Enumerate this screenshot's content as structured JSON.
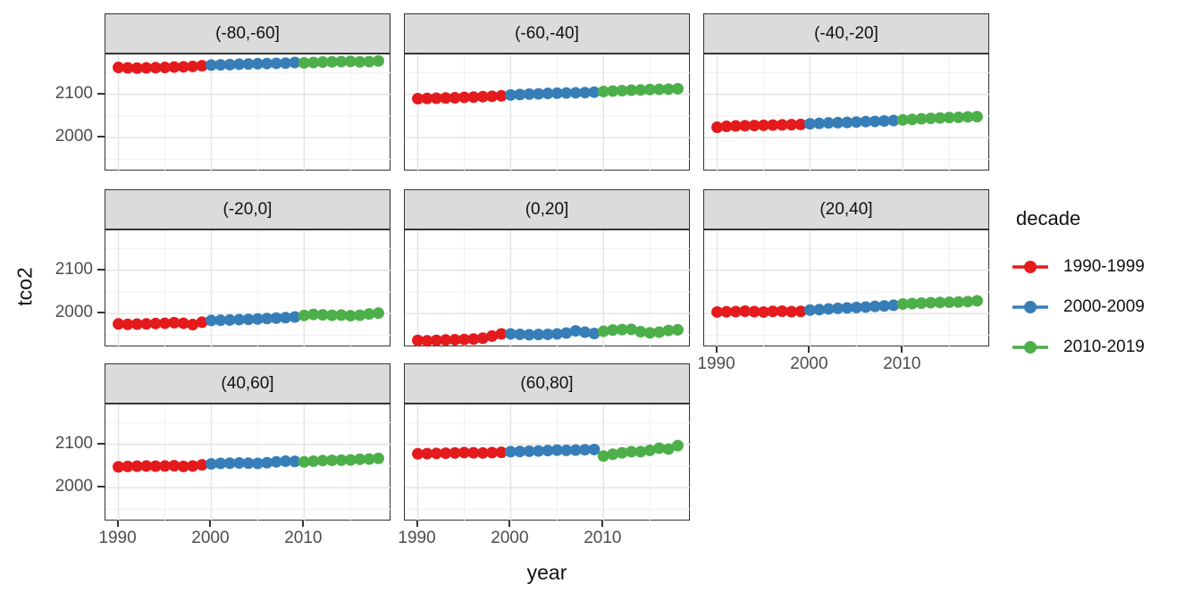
{
  "chart_data": {
    "type": "scatter",
    "title": "",
    "xlabel": "year",
    "ylabel": "tco2",
    "grid": true,
    "legend_position": "right",
    "legend_title": "decade",
    "x_ticks": [
      1990,
      2000,
      2010
    ],
    "x_minor_gridlines": [
      1995,
      2005,
      2015
    ],
    "y_ticks": [
      2100,
      2000
    ],
    "y_minor_gridlines": [
      1950,
      2050,
      2150
    ],
    "x_range": [
      1988.6,
      2019.4
    ],
    "y_range": [
      1922,
      2192
    ],
    "series_groups": [
      {
        "label": "1990-1999",
        "color": "#E41A1C",
        "from": 1990,
        "to": 1999
      },
      {
        "label": "2000-2009",
        "color": "#377EB8",
        "from": 2000,
        "to": 2009
      },
      {
        "label": "2010-2019",
        "color": "#4DAF4A",
        "from": 2010,
        "to": 2019
      }
    ],
    "x": [
      1990,
      1991,
      1992,
      1993,
      1994,
      1995,
      1996,
      1997,
      1998,
      1999,
      2000,
      2001,
      2002,
      2003,
      2004,
      2005,
      2006,
      2007,
      2008,
      2009,
      2010,
      2011,
      2012,
      2013,
      2014,
      2015,
      2016,
      2017,
      2018
    ],
    "facets": [
      {
        "label": "(-80,-60]",
        "row": 0,
        "col": 0,
        "axis_x": false,
        "axis_y": true,
        "values": [
          2162,
          2161,
          2160.5,
          2161,
          2161.5,
          2162,
          2163,
          2163.5,
          2164.5,
          2166,
          2167.5,
          2168,
          2168.5,
          2169.5,
          2170,
          2170.5,
          2171,
          2171.5,
          2172,
          2173.5,
          2172.5,
          2173.5,
          2174.5,
          2175,
          2175.5,
          2176,
          2175,
          2175.5,
          2177
        ]
      },
      {
        "label": "(-60,-40]",
        "row": 0,
        "col": 1,
        "axis_x": false,
        "axis_y": false,
        "values": [
          2090,
          2090.5,
          2091,
          2091.5,
          2092,
          2093,
          2093.5,
          2094.5,
          2095.5,
          2096.5,
          2098.5,
          2099.5,
          2100.5,
          2101,
          2102,
          2102.5,
          2103,
          2103.5,
          2104,
          2105,
          2106.5,
          2107.5,
          2108.5,
          2109.5,
          2110,
          2111,
          2111.5,
          2112,
          2113
        ]
      },
      {
        "label": "(-40,-20]",
        "row": 0,
        "col": 2,
        "axis_x": false,
        "axis_y": false,
        "values": [
          2024,
          2026,
          2027,
          2027.5,
          2028,
          2028.5,
          2029,
          2029.5,
          2030,
          2030.5,
          2032,
          2033,
          2034,
          2034.5,
          2035,
          2036,
          2037,
          2037.5,
          2038.5,
          2039.5,
          2041,
          2042,
          2043.5,
          2044.5,
          2045.5,
          2046.5,
          2047,
          2048,
          2048.5
        ]
      },
      {
        "label": "(-20,0]",
        "row": 1,
        "col": 0,
        "axis_x": false,
        "axis_y": true,
        "values": [
          1976,
          1975,
          1975.5,
          1976,
          1977,
          1977.5,
          1979,
          1977.5,
          1974.5,
          1980,
          1984,
          1984.5,
          1985,
          1986,
          1986.5,
          1987.5,
          1988.5,
          1989.5,
          1990.5,
          1992,
          1995.5,
          1998,
          1997,
          1996,
          1996.5,
          1995,
          1996,
          1999,
          2001
        ]
      },
      {
        "label": "(0,20]",
        "row": 1,
        "col": 1,
        "axis_x": false,
        "axis_y": false,
        "values": [
          1938,
          1937,
          1938,
          1939,
          1939.5,
          1940,
          1941,
          1943,
          1948,
          1953,
          1953,
          1952,
          1951,
          1951.5,
          1952,
          1953,
          1955,
          1960,
          1957,
          1954,
          1959,
          1962,
          1963,
          1963.5,
          1958,
          1955.5,
          1957,
          1961,
          1962.5
        ]
      },
      {
        "label": "(20,40]",
        "row": 1,
        "col": 2,
        "axis_x": true,
        "axis_y": false,
        "values": [
          2003.5,
          2004,
          2004.5,
          2005.5,
          2004.5,
          2003.5,
          2005,
          2005.5,
          2004.5,
          2005,
          2008,
          2009,
          2010.5,
          2012,
          2013,
          2014,
          2015,
          2016.5,
          2017.5,
          2019,
          2022,
          2023,
          2024,
          2025,
          2025.5,
          2026,
          2026.5,
          2027.5,
          2029.5
        ]
      },
      {
        "label": "(40,60]",
        "row": 2,
        "col": 0,
        "axis_x": true,
        "axis_y": true,
        "values": [
          2048,
          2049,
          2049.5,
          2050,
          2049.5,
          2050,
          2050.5,
          2049,
          2050,
          2052.5,
          2055,
          2056,
          2056.5,
          2057,
          2056.5,
          2056,
          2057.5,
          2059.5,
          2061,
          2060.5,
          2059.5,
          2061,
          2062.5,
          2063,
          2063.5,
          2064,
          2065.5,
          2066,
          2067.5
        ]
      },
      {
        "label": "(60,80]",
        "row": 2,
        "col": 1,
        "axis_x": true,
        "axis_y": false,
        "values": [
          2078,
          2078.5,
          2079,
          2079.5,
          2080,
          2081,
          2080.5,
          2080,
          2081,
          2081.5,
          2083,
          2083.5,
          2084,
          2084.5,
          2085.5,
          2086.5,
          2086,
          2086.5,
          2087.5,
          2088,
          2073,
          2077,
          2080.5,
          2083,
          2083,
          2086,
          2091,
          2089,
          2097
        ]
      }
    ],
    "style": {
      "strip_bg": "#DBDBDB",
      "panel_border": "#333333",
      "grid_major": "#E3E3E3",
      "grid_minor": "#F0F0F0",
      "tick_text": "#4D4D4D",
      "point_radius": 6.5
    }
  }
}
